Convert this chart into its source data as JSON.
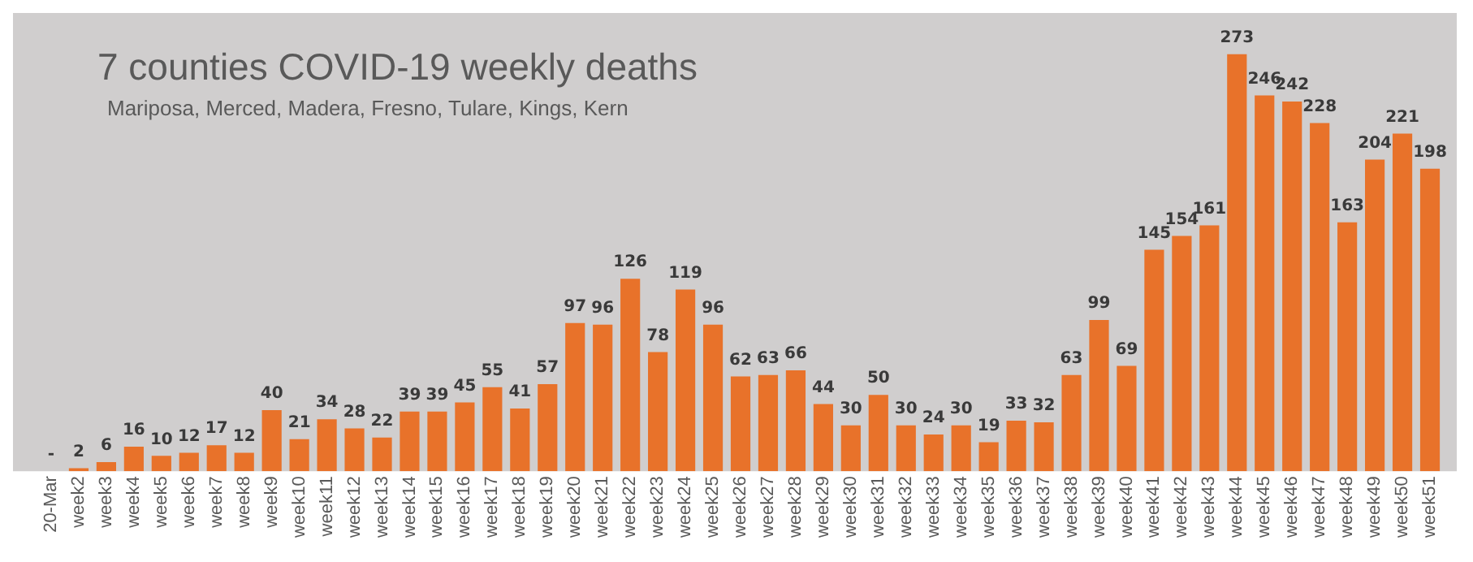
{
  "chart_data": {
    "type": "bar",
    "title": "7 counties COVID-19 weekly deaths",
    "subtitle": "Mariposa, Merced, Madera, Fresno, Tulare, Kings, Kern",
    "categories": [
      "20-Mar",
      "week2",
      "week3",
      "week4",
      "week5",
      "week6",
      "week7",
      "week8",
      "week9",
      "week10",
      "week11",
      "week12",
      "week13",
      "week14",
      "week15",
      "week16",
      "week17",
      "week18",
      "week19",
      "week20",
      "week21",
      "week22",
      "week23",
      "week24",
      "week25",
      "week26",
      "week27",
      "week28",
      "week29",
      "week30",
      "week31",
      "week32",
      "week33",
      "week34",
      "week35",
      "week36",
      "week37",
      "week38",
      "week39",
      "week40",
      "week41",
      "week42",
      "week43",
      "week44",
      "week45",
      "week46",
      "week47",
      "week48",
      "week49",
      "week50",
      "week51"
    ],
    "values": [
      0,
      2,
      6,
      16,
      10,
      12,
      17,
      12,
      40,
      21,
      34,
      28,
      22,
      39,
      39,
      45,
      55,
      41,
      57,
      97,
      96,
      126,
      78,
      119,
      96,
      62,
      63,
      66,
      44,
      30,
      50,
      30,
      24,
      30,
      19,
      33,
      32,
      63,
      99,
      69,
      145,
      154,
      161,
      273,
      246,
      242,
      228,
      163,
      204,
      221,
      198
    ],
    "value_labels": [
      "-",
      "2",
      "6",
      "16",
      "10",
      "12",
      "17",
      "12",
      "40",
      "21",
      "34",
      "28",
      "22",
      "39",
      "39",
      "45",
      "55",
      "41",
      "57",
      "97",
      "96",
      "126",
      "78",
      "119",
      "96",
      "62",
      "63",
      "66",
      "44",
      "30",
      "50",
      "30",
      "24",
      "30",
      "19",
      "33",
      "32",
      "63",
      "99",
      "69",
      "145",
      "154",
      "161",
      "273",
      "246",
      "242",
      "228",
      "163",
      "204",
      "221",
      "198"
    ],
    "color": "#e8722a",
    "grid": false,
    "legend": false,
    "tick_labels": "x"
  }
}
